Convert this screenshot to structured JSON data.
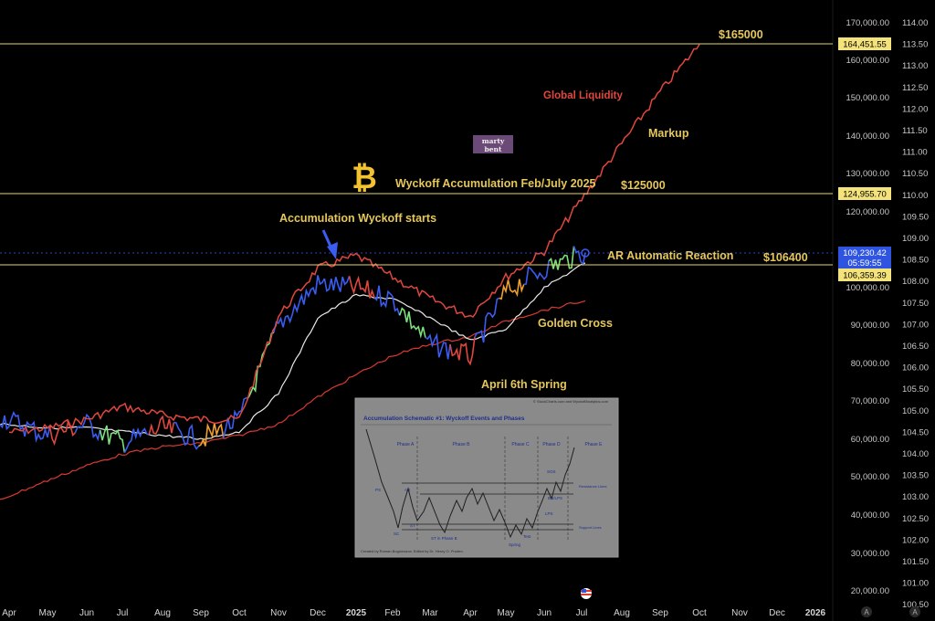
{
  "chart_data": {
    "type": "line",
    "title": "",
    "x_ticks": [
      "Apr",
      "May",
      "Jun",
      "Jul",
      "Aug",
      "Sep",
      "Oct",
      "Nov",
      "Dec",
      "2025",
      "Feb",
      "Mar",
      "Apr",
      "May",
      "Jun",
      "Jul",
      "Aug",
      "Sep",
      "Oct",
      "Nov",
      "Dec",
      "2026"
    ],
    "y_ticks_price": [
      "170,000.00",
      "160,000.00",
      "150,000.00",
      "140,000.00",
      "130,000.00",
      "120,000.00",
      "100,000.00",
      "90,000.00",
      "80,000.00",
      "70,000.00",
      "60,000.00",
      "50,000.00",
      "40,000.00",
      "30,000.00",
      "20,000.00"
    ],
    "y_ticks_liquidity": [
      "114.00",
      "113.50",
      "113.00",
      "112.50",
      "112.00",
      "111.50",
      "111.00",
      "110.50",
      "110.00",
      "109.50",
      "109.00",
      "108.50",
      "108.00",
      "107.50",
      "107.00",
      "106.50",
      "106.00",
      "105.50",
      "105.00",
      "104.50",
      "104.00",
      "103.50",
      "103.00",
      "102.50",
      "102.00",
      "101.50",
      "101.00",
      "100.50"
    ],
    "axis_badges": [
      "A",
      "A"
    ],
    "series": [
      {
        "name": "Global Liquidity",
        "color": "#e0473e",
        "x": [
          "2024-04",
          "2024-05",
          "2024-06",
          "2024-07",
          "2024-08",
          "2024-09",
          "2024-10",
          "2024-11",
          "2024-12",
          "2025-01",
          "2025-02",
          "2025-03",
          "2025-04",
          "2025-05",
          "2025-06",
          "2025-07",
          "2025-08",
          "2025-09",
          "2025-10"
        ],
        "values": [
          104.5,
          104.6,
          104.8,
          105.1,
          104.9,
          104.8,
          104.8,
          107.2,
          108.3,
          108.6,
          108.1,
          107.6,
          107.2,
          108.1,
          108.7,
          109.9,
          111.2,
          112.4,
          113.5
        ]
      },
      {
        "x": [
          "2024-04",
          "2024-05",
          "2024-06",
          "2024-07",
          "2024-08",
          "2024-09",
          "2024-10",
          "2024-11",
          "2024-12",
          "2025-01",
          "2025-02",
          "2025-03",
          "2025-04",
          "2025-05",
          "2025-06",
          "2025-07"
        ],
        "values": [
          66000,
          61000,
          64000,
          59000,
          63000,
          60000,
          65000,
          90000,
          101000,
          100000,
          97000,
          85000,
          82000,
          99000,
          105000,
          109230
        ]
      },
      {
        "color": "#e8e8e8",
        "values": [
          64000,
          63000,
          63000,
          62000,
          61000,
          60000,
          62000,
          72000,
          92000,
          98000,
          97000,
          92000,
          86000,
          89000,
          100000,
          106500
        ]
      },
      {
        "color": "#d83a32",
        "values": [
          44000,
          49000,
          53000,
          56000,
          58000,
          59000,
          61000,
          64000,
          71000,
          77000,
          82000,
          85000,
          87000,
          91000,
          94000,
          96500
        ]
      }
    ],
    "horizontal_levels": [
      {
        "label": "$165000",
        "tag": "164,451.55",
        "value": 164451.55
      },
      {
        "label": "$125000",
        "tag": "124,955.70",
        "value": 124955.7
      },
      {
        "label": "$106400",
        "tag": "106,359.39",
        "value": 106359.39
      }
    ],
    "last_price": {
      "value": "109,230.42",
      "timer": "05:59:55"
    },
    "annotations": [
      "Accumulation Wyckoff starts",
      "Wyckoff Accumulation Feb/July 2025",
      "AR Automatic Reaction",
      "Golden Cross",
      "April 6th Spring",
      "Global Liquidity",
      "Markup"
    ]
  },
  "logo_text": [
    "marty",
    "bent"
  ],
  "inset": {
    "title": "Accumulation Schematic #1: Wyckoff Events and Phases",
    "source": "© StockCharts.com and WyckoffAnalytics.com",
    "credit": "Created by Roman Bogomazov. Edited by Dr. Henry O. Pruden.",
    "phases": [
      "Phase A",
      "Phase B",
      "Phase C",
      "Phase D",
      "Phase E"
    ],
    "events": [
      "PS",
      "SC",
      "AR",
      "ST",
      "ST in Phase B",
      "Spring",
      "Test",
      "LPS",
      "BU/LPS",
      "SOS"
    ],
    "lines": [
      "Resistance Lines",
      "Support Lines"
    ]
  },
  "colors": {
    "background": "#000000",
    "gold": "#e6c75a",
    "level_line": "#e8d36a",
    "liquidity": "#e0473e",
    "price": "#3a5cf0",
    "ma_white": "#e8e8e8",
    "ma_red": "#d83a32"
  }
}
